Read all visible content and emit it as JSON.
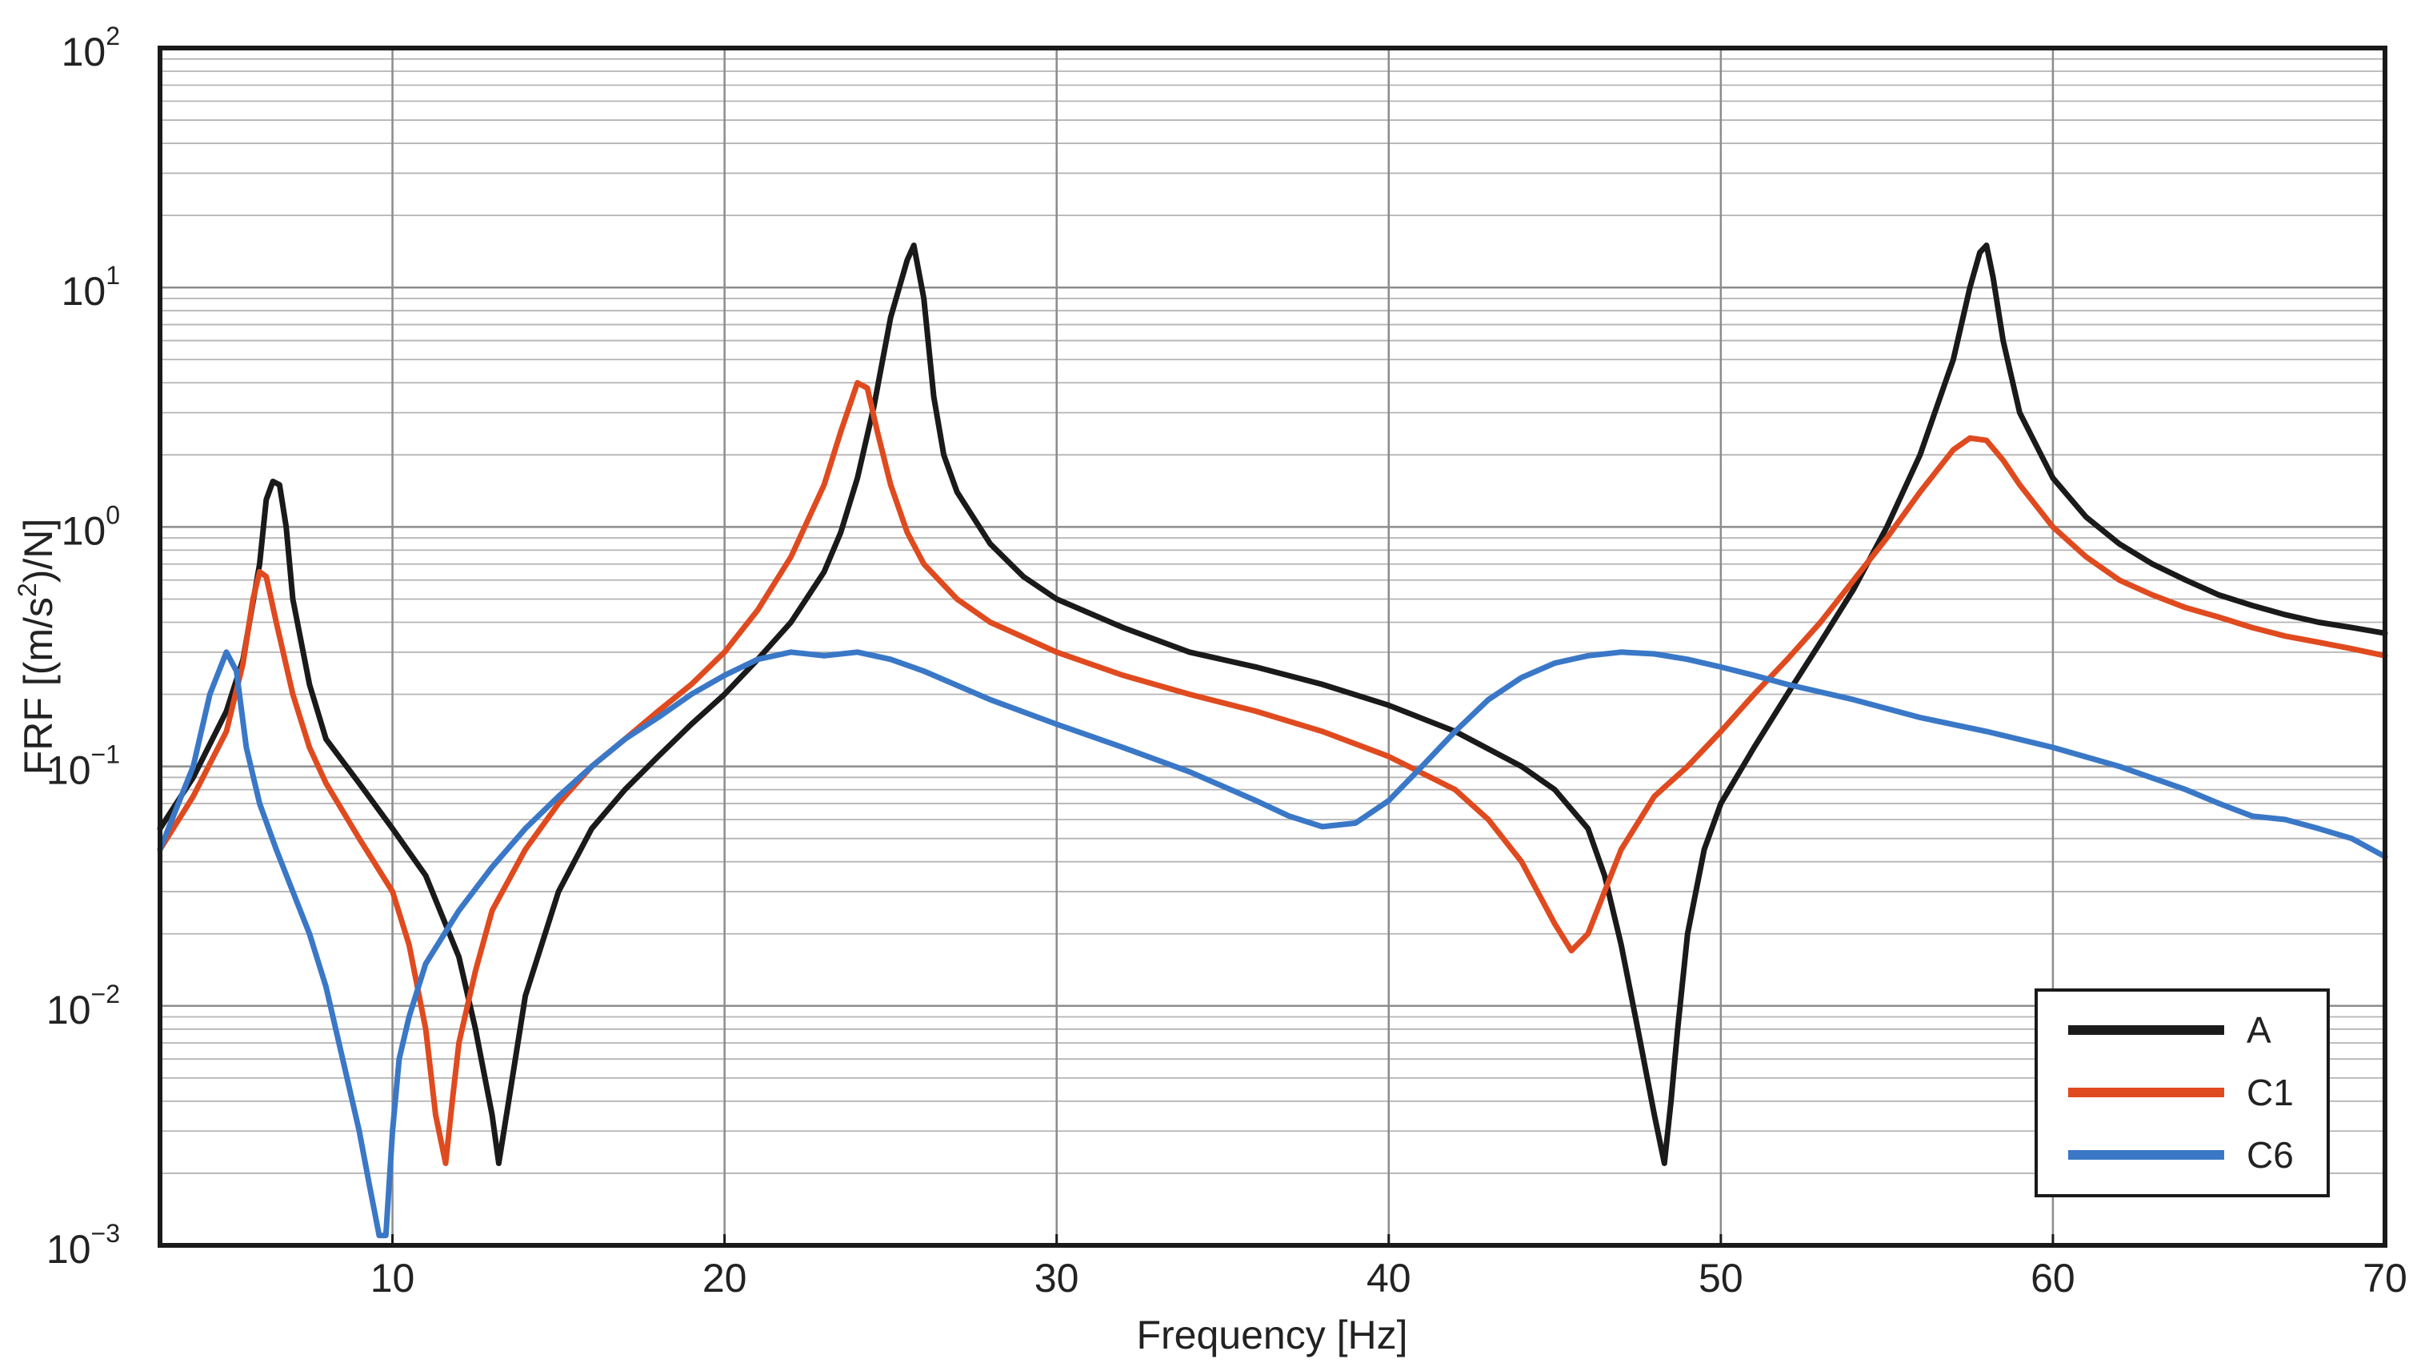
{
  "chart_data": {
    "type": "line",
    "title": "",
    "xlabel": "Frequency [Hz]",
    "ylabel_parts": [
      "FRF [(m/s",
      "2",
      ")/N]"
    ],
    "xlim": [
      3,
      70
    ],
    "ylim": [
      0.001,
      100
    ],
    "yscale": "log",
    "grid": true,
    "legend_position": "bottom-right",
    "x_ticks": [
      {
        "value": 10,
        "label": "10"
      },
      {
        "value": 20,
        "label": "20"
      },
      {
        "value": 30,
        "label": "30"
      },
      {
        "value": 40,
        "label": "40"
      },
      {
        "value": 50,
        "label": "50"
      },
      {
        "value": 60,
        "label": "60"
      },
      {
        "value": 70,
        "label": "70"
      }
    ],
    "y_ticks": [
      {
        "value": 0.001,
        "base": "10",
        "exp": "−3"
      },
      {
        "value": 0.01,
        "base": "10",
        "exp": "−2"
      },
      {
        "value": 0.1,
        "base": "10",
        "exp": "−1"
      },
      {
        "value": 1,
        "base": "10",
        "exp": "0"
      },
      {
        "value": 10,
        "base": "10",
        "exp": "1"
      },
      {
        "value": 100,
        "base": "10",
        "exp": "2"
      }
    ],
    "series": [
      {
        "name": "A",
        "color": "#1a1a1a",
        "x": [
          3,
          4,
          5,
          5.5,
          6,
          6.2,
          6.4,
          6.6,
          6.8,
          7,
          7.5,
          8,
          9,
          10,
          11,
          12,
          12.5,
          13,
          13.2,
          13.5,
          14,
          15,
          16,
          17,
          18,
          19,
          20,
          21,
          22,
          23,
          23.5,
          24,
          24.5,
          25,
          25.5,
          25.7,
          26,
          26.3,
          26.6,
          27,
          28,
          29,
          30,
          32,
          34,
          36,
          38,
          40,
          42,
          44,
          45,
          46,
          46.5,
          47,
          47.5,
          48,
          48.3,
          48.5,
          48.7,
          49,
          49.5,
          50,
          51,
          52,
          53,
          54,
          55,
          56,
          57,
          57.5,
          57.8,
          58,
          58.2,
          58.5,
          59,
          60,
          61,
          62,
          63,
          64,
          65,
          66,
          67,
          68,
          69,
          70
        ],
        "y": [
          0.055,
          0.09,
          0.17,
          0.28,
          0.7,
          1.3,
          1.55,
          1.5,
          1.0,
          0.5,
          0.22,
          0.13,
          0.085,
          0.055,
          0.035,
          0.016,
          0.008,
          0.0035,
          0.0022,
          0.004,
          0.011,
          0.03,
          0.055,
          0.08,
          0.11,
          0.15,
          0.2,
          0.28,
          0.4,
          0.65,
          0.95,
          1.6,
          3.2,
          7.5,
          13,
          15,
          9,
          3.5,
          2.0,
          1.4,
          0.85,
          0.62,
          0.5,
          0.38,
          0.3,
          0.26,
          0.22,
          0.18,
          0.14,
          0.1,
          0.08,
          0.055,
          0.035,
          0.018,
          0.008,
          0.0035,
          0.0022,
          0.004,
          0.008,
          0.02,
          0.045,
          0.07,
          0.12,
          0.2,
          0.33,
          0.55,
          1.0,
          2.0,
          5.0,
          10,
          14,
          15,
          11,
          6,
          3.0,
          1.6,
          1.1,
          0.85,
          0.7,
          0.6,
          0.52,
          0.47,
          0.43,
          0.4,
          0.38,
          0.36
        ]
      },
      {
        "name": "C1",
        "color": "#e04a1f",
        "x": [
          3,
          4,
          5,
          5.5,
          5.8,
          6,
          6.2,
          6.5,
          7,
          7.5,
          8,
          9,
          10,
          10.5,
          11,
          11.3,
          11.6,
          11.8,
          12,
          12.5,
          13,
          14,
          15,
          16,
          17,
          18,
          19,
          20,
          21,
          22,
          23,
          23.5,
          24,
          24.3,
          24.6,
          25,
          25.5,
          26,
          27,
          28,
          30,
          32,
          34,
          36,
          38,
          40,
          42,
          43,
          44,
          45,
          45.5,
          46,
          47,
          48,
          49,
          50,
          51,
          52,
          53,
          54,
          55,
          56,
          57,
          57.5,
          58,
          58.5,
          59,
          60,
          61,
          62,
          63,
          64,
          65,
          66,
          67,
          68,
          69,
          70
        ],
        "y": [
          0.045,
          0.075,
          0.14,
          0.27,
          0.5,
          0.65,
          0.62,
          0.4,
          0.2,
          0.12,
          0.085,
          0.05,
          0.03,
          0.018,
          0.008,
          0.0035,
          0.0022,
          0.004,
          0.007,
          0.014,
          0.025,
          0.045,
          0.07,
          0.1,
          0.13,
          0.17,
          0.22,
          0.3,
          0.45,
          0.75,
          1.5,
          2.5,
          4.0,
          3.8,
          2.5,
          1.5,
          0.95,
          0.7,
          0.5,
          0.4,
          0.3,
          0.24,
          0.2,
          0.17,
          0.14,
          0.11,
          0.08,
          0.06,
          0.04,
          0.022,
          0.017,
          0.02,
          0.045,
          0.075,
          0.1,
          0.14,
          0.2,
          0.28,
          0.4,
          0.6,
          0.9,
          1.4,
          2.1,
          2.35,
          2.3,
          1.9,
          1.5,
          1.0,
          0.75,
          0.6,
          0.52,
          0.46,
          0.42,
          0.38,
          0.35,
          0.33,
          0.31,
          0.29
        ]
      },
      {
        "name": "C6",
        "color": "#3a78c7",
        "x": [
          3,
          4,
          4.5,
          5,
          5.3,
          5.6,
          6,
          6.5,
          7,
          7.5,
          8,
          8.5,
          9,
          9.3,
          9.6,
          9.8,
          10,
          10.2,
          10.5,
          11,
          12,
          13,
          14,
          15,
          16,
          17,
          18,
          19,
          20,
          21,
          22,
          23,
          24,
          25,
          26,
          28,
          30,
          32,
          34,
          36,
          37,
          38,
          39,
          40,
          41,
          42,
          43,
          44,
          45,
          46,
          47,
          48,
          49,
          50,
          51,
          52,
          54,
          56,
          58,
          60,
          62,
          64,
          65,
          66,
          67,
          68,
          69,
          70
        ],
        "y": [
          0.045,
          0.1,
          0.2,
          0.3,
          0.25,
          0.12,
          0.07,
          0.045,
          0.03,
          0.02,
          0.012,
          0.006,
          0.003,
          0.0018,
          0.0011,
          0.0011,
          0.003,
          0.006,
          0.009,
          0.015,
          0.025,
          0.038,
          0.055,
          0.075,
          0.1,
          0.13,
          0.16,
          0.2,
          0.24,
          0.28,
          0.3,
          0.29,
          0.3,
          0.28,
          0.25,
          0.19,
          0.15,
          0.12,
          0.095,
          0.072,
          0.062,
          0.056,
          0.058,
          0.072,
          0.1,
          0.14,
          0.19,
          0.235,
          0.27,
          0.29,
          0.3,
          0.295,
          0.28,
          0.26,
          0.24,
          0.22,
          0.19,
          0.16,
          0.14,
          0.12,
          0.1,
          0.08,
          0.07,
          0.062,
          0.06,
          0.055,
          0.05,
          0.042
        ]
      }
    ]
  }
}
